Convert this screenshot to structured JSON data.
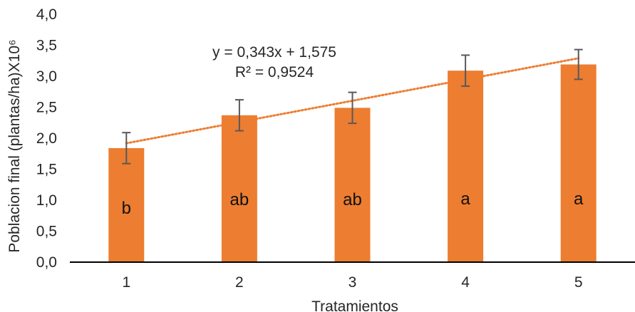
{
  "chart_data": {
    "type": "bar",
    "categories": [
      "1",
      "2",
      "3",
      "4",
      "5"
    ],
    "values": [
      1.84,
      2.37,
      2.49,
      3.09,
      3.19
    ],
    "error_bars": [
      0.25,
      0.25,
      0.25,
      0.25,
      0.24
    ],
    "group_letters": [
      "b",
      "ab",
      "ab",
      "a",
      "a"
    ],
    "xlabel": "Tratamientos",
    "ylabel": "Poblacion final (plantas/ha)X10⁶",
    "ylim": [
      0,
      4
    ],
    "yticks": [
      "0,0",
      "0,5",
      "1,0",
      "1,5",
      "2,0",
      "2,5",
      "3,0",
      "3,5",
      "4,0"
    ],
    "grid": false,
    "legend": "none",
    "trendline": {
      "type": "linear",
      "slope": 0.343,
      "intercept": 1.575,
      "equation": "y = 0,343x + 1,575",
      "r_squared": "R² = 0,9524"
    },
    "colors": {
      "bar": "#ED7D31",
      "trendline": "#ED7D31",
      "error_bar": "#595959",
      "axis": "#000000"
    }
  }
}
